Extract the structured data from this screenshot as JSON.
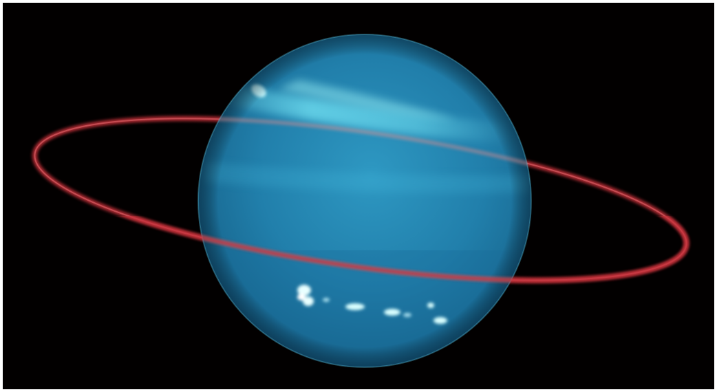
{
  "image": {
    "subject": "uranus-planet-icon",
    "colors": {
      "background": "#020000",
      "frame": "#ffffff",
      "planet_base": "#2a8fb8",
      "planet_light": "#4fc9ea",
      "planet_dark": "#155f86",
      "atmosphere_band": "#7ff2ff",
      "cloud_spots": "#d9ffff",
      "ring": "#c8323b"
    }
  }
}
